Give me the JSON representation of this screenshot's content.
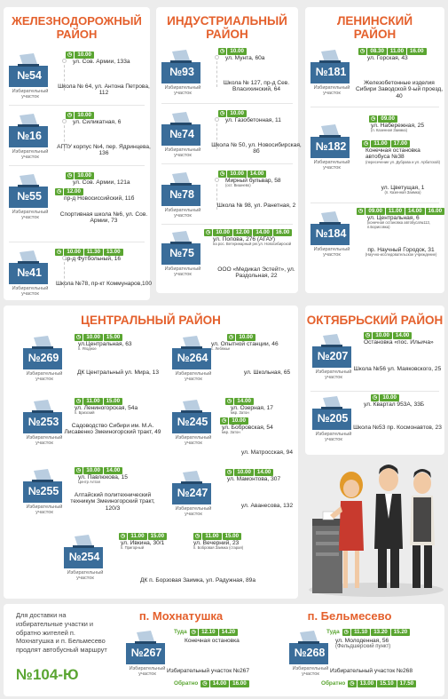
{
  "districts": {
    "zheleznodorozhny": {
      "title": "Железнодорожный район",
      "precincts": [
        {
          "num": "№54",
          "label": "Избирательный участок",
          "times": [
            "10.00"
          ],
          "addr1": "ул. Сов. Армии, 133а",
          "addr2": "Школа № 64, ул. Антона Петрова, 112"
        },
        {
          "num": "№16",
          "label": "Избирательный участок",
          "times": [
            "10.00"
          ],
          "addr1": "ул. Силикатная, 6",
          "addr2": "АГПУ корпус №4, пер. Ядринцева, 136"
        },
        {
          "num": "№55",
          "label": "Избирательный участок",
          "times": [
            "10.00",
            "12.00"
          ],
          "addr1": "ул. Сов. Армии, 121а",
          "addr1b": "пр-д Новосиcсийский, 11б",
          "addr2": "Спортивная школа №6, ул. Сов. Армии, 73"
        },
        {
          "num": "№41",
          "label": "Избирательный участок",
          "times": [
            "10.00",
            "11.30",
            "13.00"
          ],
          "addr1": "пр-д Футбольный, 16",
          "addr2": "Школа №78, пр-кт Коммунаров,100"
        }
      ]
    },
    "industrialny": {
      "title": "Индустриальный район",
      "precincts": [
        {
          "num": "№93",
          "label": "Избирательный участок",
          "times": [
            "10.00"
          ],
          "addr1": "ул. Мунта, 60а",
          "addr2": "Школа № 127, пр-д Сев. Власихинский, 64"
        },
        {
          "num": "№74",
          "label": "Избирательный участок",
          "times": [
            "10.00"
          ],
          "addr1": "ул. Газобетонная, 11",
          "addr2": "Школа № 50, ул. Новосибирская, 8б"
        },
        {
          "num": "№78",
          "label": "Избирательный участок",
          "times": [
            "10.00",
            "14.00"
          ],
          "addr1": "Мирный бульвар, 58",
          "addr1sub": "(ост. Вишнево)",
          "addr2": "Школа № 98, ул. Ранетная, 2"
        },
        {
          "num": "№75",
          "label": "Избирательный участок",
          "times": [
            "10.00",
            "12.00",
            "14.00",
            "16.00"
          ],
          "addr1": "ул. Попова, 276 (АГАУ)",
          "addr1sub": "на рос. Ветеринарный рег.ул. Новосибирской",
          "addr2": "ООО «Медикал Эстейт», ул. Раздольная, 22"
        }
      ]
    },
    "leninsky": {
      "title": "Ленинский район",
      "precincts": [
        {
          "num": "№181",
          "label": "Избирательный участок",
          "times": [
            "08.30",
            "11.00",
            "16.00"
          ],
          "addr1": "ул. Горская, 43",
          "addr2": "Железобетонные изделия Сибири Заводской 9-ый проезд, 40"
        },
        {
          "num": "№182",
          "label": "Избирательный участок",
          "times": [
            "09.00",
            "11.00",
            "17.00"
          ],
          "addr1": "ул. Набережная, 25",
          "addr1sub": "(п. Казенная Заимка)",
          "addr1b": "Конечная остановка автобуса №38",
          "addr1bsub": "(пересечение ул. Дубрава и ул. Арбатской)",
          "addr2": "ул. Цветущая, 1",
          "addr2sub": "(п. Казенная Заимка)"
        },
        {
          "num": "№184",
          "label": "Избирательный участок",
          "times": [
            "09.00",
            "11.00",
            "14.00",
            "16.00"
          ],
          "addr1": "ул. Центральная, 6",
          "addr1sub": "(конечная остановка автобуса№113, п.Борисовка)",
          "addr2": "пр. Научный Городок, 31",
          "addr2sub": "(Научно-исследовательское учреждение)"
        }
      ]
    },
    "centralny": {
      "title": "Центральный район",
      "precincts": [
        {
          "num": "№269",
          "label": "Избирательный участок",
          "times": [
            "10.00",
            "15.00"
          ],
          "addr1": "ул.Центральная, 63",
          "addr1sub": "п. Ягодное",
          "addr2": "ДК Центральный ул. Мира, 13"
        },
        {
          "num": "№253",
          "label": "Избирательный участок",
          "times": [
            "11.00",
            "15.00"
          ],
          "addr1": "ул. Лениногорская, 54а",
          "addr1sub": "п. Бризский",
          "addr2": "Садоводство Сибири им. М.А. Лисавенко Змеиногорский тракт, 49"
        },
        {
          "num": "№255",
          "label": "Избирательный участок",
          "times": [
            "10.00",
            "14.00"
          ],
          "addr1": "ул. Павлюкова, 15",
          "addr1sub": "Центр Алтая",
          "addr2": "Алтайский политехнический техникум Змеиногорский тракт, 120/3"
        },
        {
          "num": "№264",
          "label": "Избирательный участок",
          "times": [
            "10.00"
          ],
          "addr1": "ул. Опытной станции, 46",
          "addr1sub": "с. Лебяжье",
          "addr2": "ул. Школьная, 65"
        },
        {
          "num": "№245",
          "label": "Избирательный участок",
          "times": [
            "14.00",
            "10.00"
          ],
          "addr1": "ул. Озерная, 17",
          "addr1sub": "мкр. Затон",
          "addr1b": "ул. Бобровская, 54",
          "addr1bsub": "мкр. Затон",
          "addr2": "ул. Матросская, 94"
        },
        {
          "num": "№247",
          "label": "Избирательный участок",
          "times": [
            "10.00",
            "14.00"
          ],
          "addr1": "ул. Мамонтова, 307",
          "addr2": "ул. Аванесова, 132"
        },
        {
          "num": "№254",
          "label": "Избирательный участок",
          "times": [
            "11.00",
            "15.00"
          ],
          "addr1": "ул. Ивкина, 30/1",
          "addr1sub": "п. Пригорный",
          "times_b": [
            "11.00",
            "15.00"
          ],
          "addr1b": "ул. Вечерний, 23",
          "addr1bsub": "п. Бобровая Заимка (старая)",
          "addr2": "ДК п. Борзовая Заимка, ул. Радужная, 89а"
        }
      ]
    },
    "oktyabrsky": {
      "title": "Октябрьский район",
      "precincts": [
        {
          "num": "№207",
          "label": "Избирательный участок",
          "times": [
            "10.00",
            "14.00"
          ],
          "addr1": "Остановка «пос. Ильича»",
          "addr2": "Школа №56 ул. Маяковского, 25"
        },
        {
          "num": "№205",
          "label": "Избирательный участок",
          "times": [
            "10.00"
          ],
          "addr1": "ул. Квартал 953А, 33Б",
          "addr2": "Школа №53 пр. Космонавтов, 23"
        }
      ]
    }
  },
  "bus_note": {
    "text": "Для доставки на избирательные участки и обратно жителей п. Мохнатушка и п. Бельмесево продлят автобусный маршрут",
    "route": "№104-Ю"
  },
  "mokhnatushka": {
    "title": "п. Мохнатушка",
    "num": "№267",
    "label": "Избирательный участок",
    "there_label": "Туда",
    "there_times": [
      "12.10",
      "14.20"
    ],
    "stop": "Конечная остановка",
    "dest": "Избирательный участок №267",
    "back_label": "Обратно",
    "back_times": [
      "14.00",
      "16.00"
    ]
  },
  "belmesevo": {
    "title": "п. Бельмесево",
    "num": "№268",
    "label": "Избирательный участок",
    "there_label": "Туда",
    "there_times": [
      "11.10",
      "13.20",
      "15.20"
    ],
    "stop": "ул. Молоденная, 56",
    "stop_sub": "(Фельдшерский пункт)",
    "dest": "Избирательный участок №268",
    "back_label": "Обратно",
    "back_times": [
      "13.00",
      "15.10",
      "17.50"
    ]
  },
  "colors": {
    "accent": "#e4602c",
    "ballot": "#3a6d9a",
    "pill": "#5aa531"
  }
}
